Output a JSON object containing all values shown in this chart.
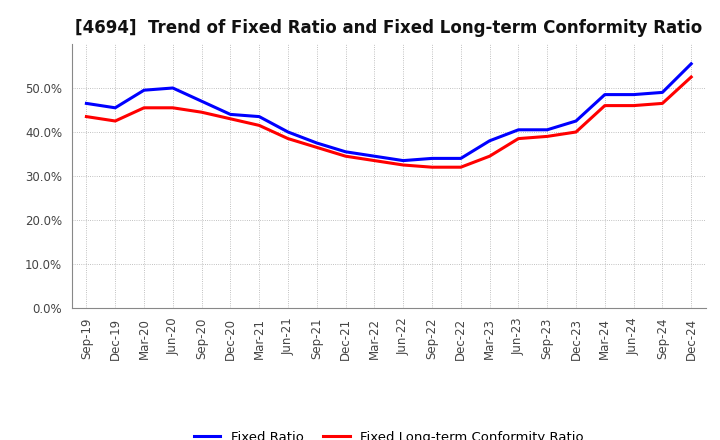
{
  "title": "[4694]  Trend of Fixed Ratio and Fixed Long-term Conformity Ratio",
  "x_labels": [
    "Sep-19",
    "Dec-19",
    "Mar-20",
    "Jun-20",
    "Sep-20",
    "Dec-20",
    "Mar-21",
    "Jun-21",
    "Sep-21",
    "Dec-21",
    "Mar-22",
    "Jun-22",
    "Sep-22",
    "Dec-22",
    "Mar-23",
    "Jun-23",
    "Sep-23",
    "Dec-23",
    "Mar-24",
    "Jun-24",
    "Sep-24",
    "Dec-24"
  ],
  "fixed_ratio": [
    46.5,
    45.5,
    49.5,
    50.0,
    47.0,
    44.0,
    43.5,
    40.0,
    37.5,
    35.5,
    34.5,
    33.5,
    34.0,
    34.0,
    38.0,
    40.5,
    40.5,
    42.5,
    48.5,
    48.5,
    49.0,
    55.5
  ],
  "fixed_lt_ratio": [
    43.5,
    42.5,
    45.5,
    45.5,
    44.5,
    43.0,
    41.5,
    38.5,
    36.5,
    34.5,
    33.5,
    32.5,
    32.0,
    32.0,
    34.5,
    38.5,
    39.0,
    40.0,
    46.0,
    46.0,
    46.5,
    52.5
  ],
  "ylim": [
    0,
    60
  ],
  "yticks": [
    0.0,
    10.0,
    20.0,
    30.0,
    40.0,
    50.0
  ],
  "blue_color": "#0000FF",
  "red_color": "#FF0000",
  "background_color": "#FFFFFF",
  "grid_color": "#999999",
  "legend_fixed_ratio": "Fixed Ratio",
  "legend_fixed_lt_ratio": "Fixed Long-term Conformity Ratio",
  "title_fontsize": 12,
  "tick_fontsize": 8.5,
  "legend_fontsize": 9.5
}
